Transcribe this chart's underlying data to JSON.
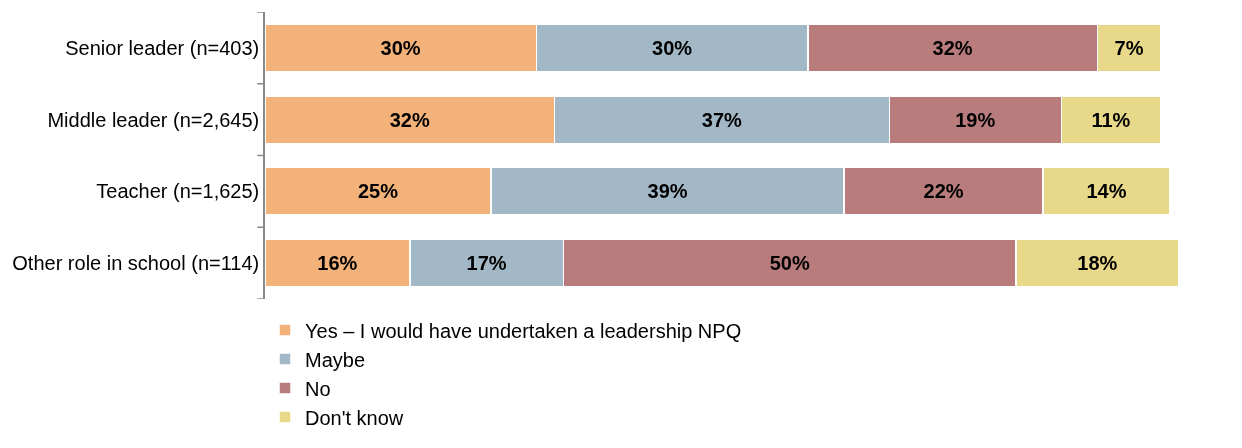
{
  "chart_data": {
    "type": "bar",
    "orientation": "horizontal",
    "stacked": true,
    "categories": [
      "Senior leader (n=403)",
      "Middle leader (n=2,645)",
      "Teacher (n=1,625)",
      "Other role in school (n=114)"
    ],
    "series": [
      {
        "name": "Yes – I would have undertaken a leadership NPQ",
        "color": "#f2b27a",
        "values": [
          30,
          32,
          25,
          16
        ],
        "value_labels": [
          "30%",
          "32%",
          "25%",
          "16%"
        ]
      },
      {
        "name": "Maybe",
        "color": "#a3b8c6",
        "values": [
          30,
          37,
          39,
          17
        ],
        "value_labels": [
          "30%",
          "37%",
          "39%",
          "17%"
        ]
      },
      {
        "name": "No",
        "color": "#b97c7c",
        "values": [
          32,
          19,
          22,
          50
        ],
        "value_labels": [
          "32%",
          "19%",
          "22%",
          "50%"
        ]
      },
      {
        "name": "Don't know",
        "color": "#e8d98a",
        "values": [
          7,
          11,
          14,
          18
        ],
        "value_labels": [
          "7%",
          "11%",
          "14%",
          "18%"
        ]
      }
    ],
    "tick_labels": "y",
    "legend": "bottom"
  }
}
